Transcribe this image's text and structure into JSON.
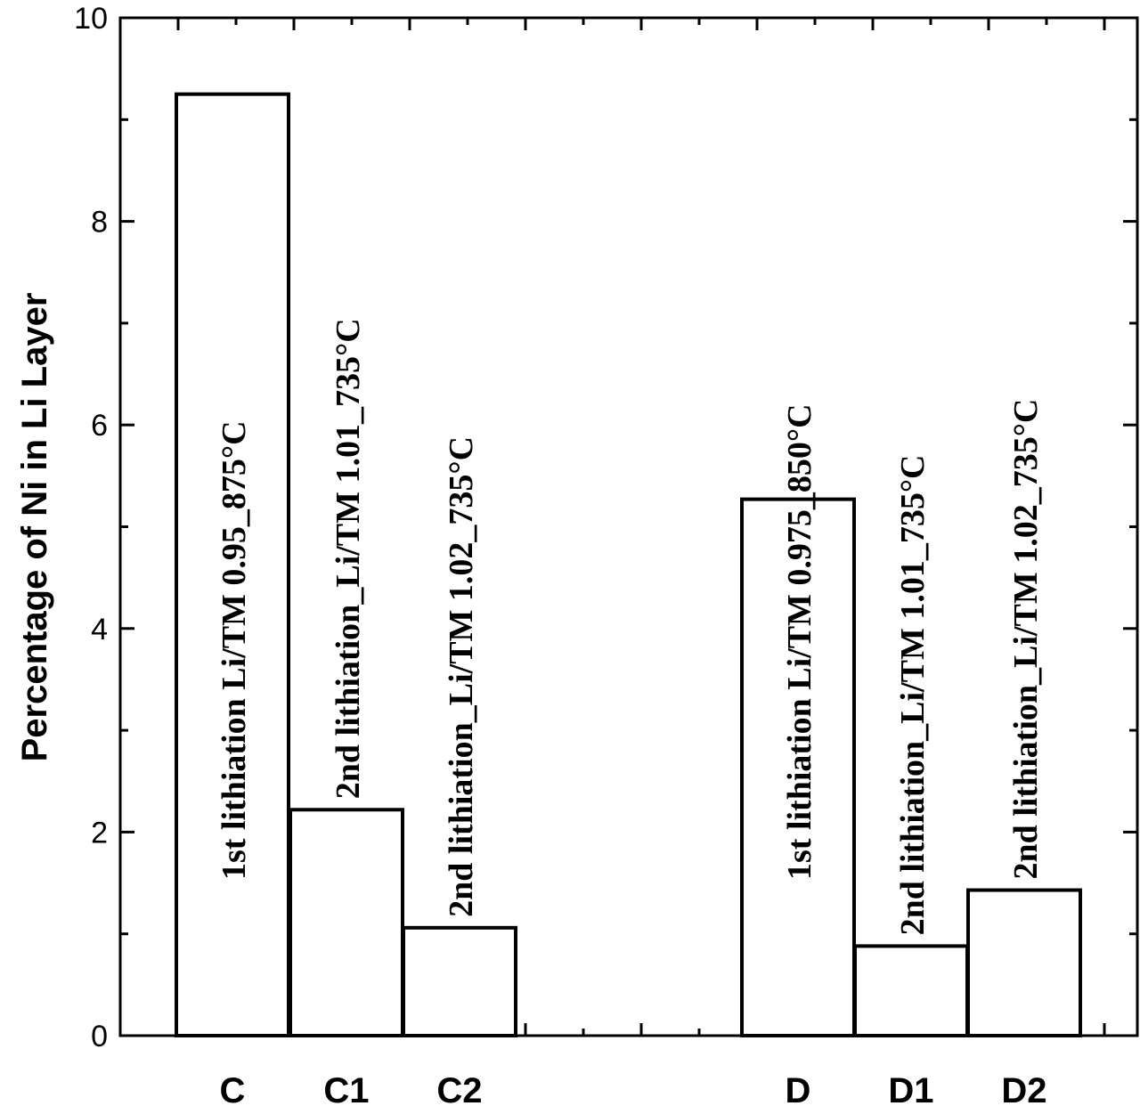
{
  "chart_data": {
    "type": "bar",
    "title": "",
    "xlabel": "",
    "ylabel": "Percentage of Ni in Li Layer",
    "ylim": [
      0,
      10
    ],
    "yticks": [
      "0",
      "2",
      "4",
      "6",
      "8",
      "10"
    ],
    "grid": false,
    "categories": [
      "C",
      "C1",
      "C2",
      "D",
      "D1",
      "D2"
    ],
    "values": [
      9.25,
      2.22,
      1.06,
      5.27,
      0.88,
      1.43
    ],
    "bar_labels": [
      "1st lithiation Li/TM 0.95_875°C",
      "2nd lithiation_Li/TM 1.01_735°C",
      "2nd lithiation_Li/TM 1.02_735°C",
      "1st lithiation Li/TM 0.975_850°C",
      "2nd lithiation_Li/TM 1.01_735°C",
      "2nd lithiation_Li/TM 1.02_735°C"
    ]
  }
}
